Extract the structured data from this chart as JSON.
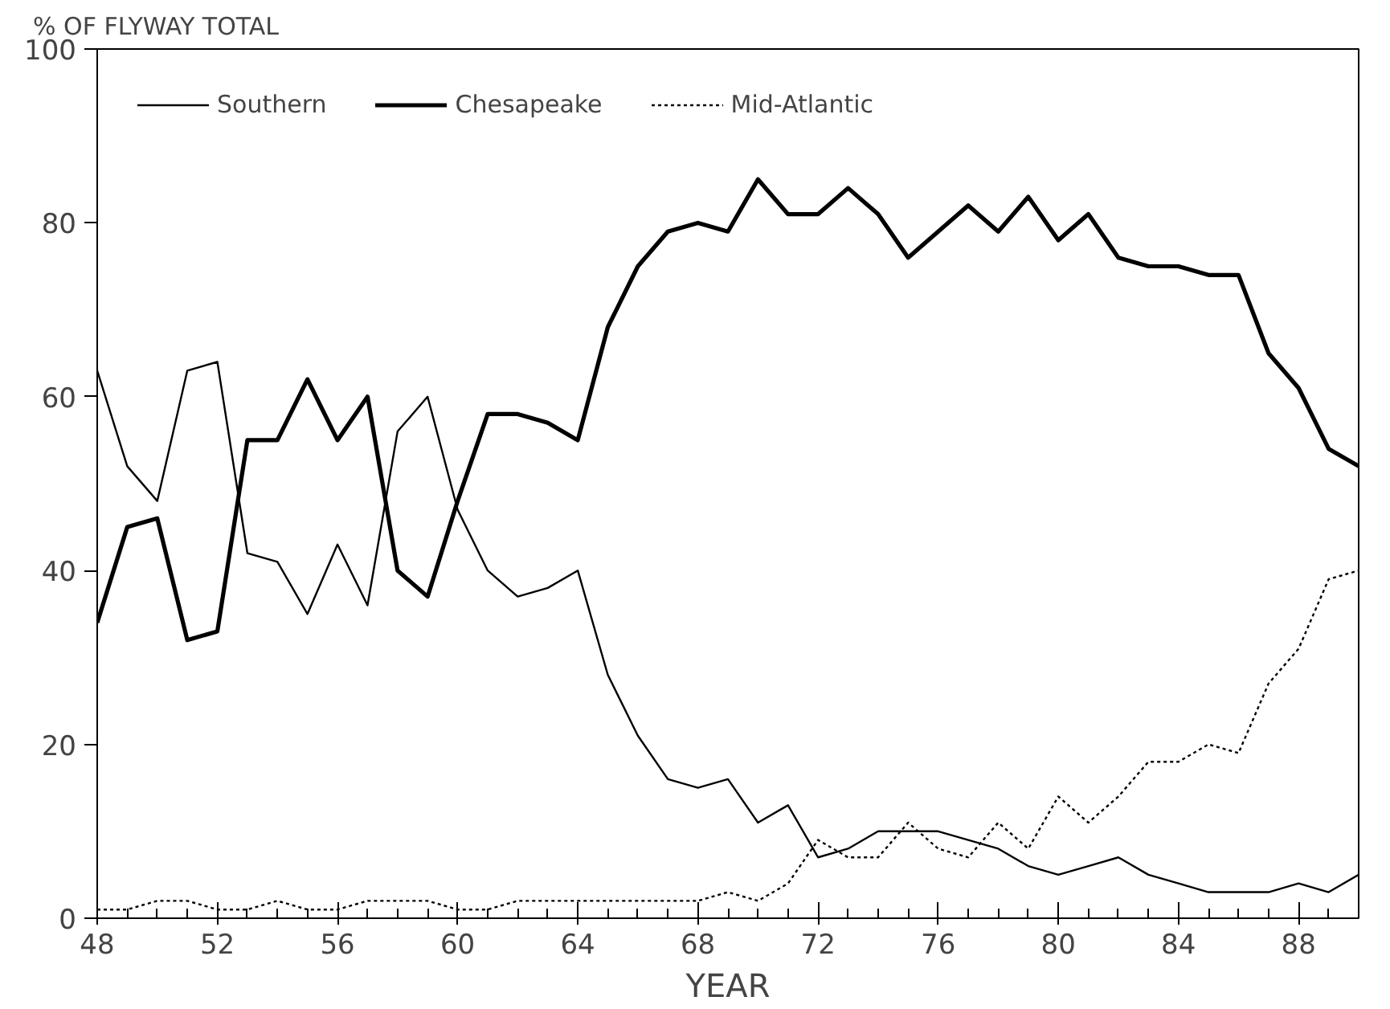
{
  "chart_data": {
    "type": "line",
    "ylabel": "% OF FLYWAY TOTAL",
    "xlabel": "YEAR",
    "x": [
      48,
      49,
      50,
      51,
      52,
      53,
      54,
      55,
      56,
      57,
      58,
      59,
      60,
      61,
      62,
      63,
      64,
      65,
      66,
      67,
      68,
      69,
      70,
      71,
      72,
      73,
      74,
      75,
      76,
      77,
      78,
      79,
      80,
      81,
      82,
      83,
      84,
      85,
      86,
      87,
      88,
      89,
      90
    ],
    "series": [
      {
        "name": "Southern",
        "color": "#000000",
        "line_style": "solid",
        "values": [
          63,
          52,
          48,
          63,
          64,
          42,
          41,
          35,
          43,
          36,
          56,
          60,
          47,
          40,
          37,
          38,
          40,
          28,
          21,
          16,
          15,
          16,
          11,
          13,
          7,
          8,
          10,
          10,
          10,
          9,
          8,
          6,
          5,
          6,
          7,
          5,
          4,
          3,
          3,
          3,
          4,
          3,
          5
        ]
      },
      {
        "name": "Chesapeake",
        "color": "#000000",
        "line_style": "solid",
        "values": [
          34,
          45,
          46,
          32,
          33,
          55,
          55,
          62,
          55,
          60,
          40,
          37,
          48,
          58,
          58,
          57,
          55,
          68,
          75,
          79,
          80,
          79,
          85,
          81,
          81,
          84,
          81,
          76,
          79,
          82,
          79,
          83,
          78,
          81,
          76,
          75,
          75,
          74,
          74,
          65,
          61,
          54,
          52
        ]
      },
      {
        "name": "Mid-Atlantic",
        "color": "#000000",
        "line_style": "dotted",
        "values": [
          1,
          1,
          2,
          2,
          1,
          1,
          2,
          1,
          1,
          2,
          2,
          2,
          1,
          1,
          2,
          2,
          2,
          2,
          2,
          2,
          2,
          3,
          2,
          4,
          9,
          7,
          7,
          11,
          8,
          7,
          11,
          8,
          14,
          11,
          14,
          18,
          18,
          20,
          19,
          27,
          31,
          39,
          40
        ]
      }
    ],
    "xlim": [
      48,
      90
    ],
    "ylim": [
      0,
      100
    ],
    "xticks": [
      48,
      52,
      56,
      60,
      64,
      68,
      72,
      76,
      80,
      84,
      88
    ],
    "yticks": [
      0,
      20,
      40,
      60,
      80,
      100
    ],
    "grid": false,
    "legend": "top left",
    "marker": "none"
  }
}
